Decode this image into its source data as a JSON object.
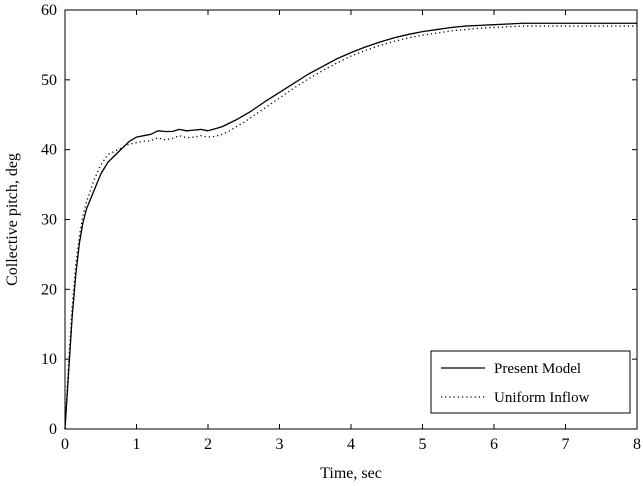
{
  "chart_data": {
    "type": "line",
    "title": "",
    "xlabel": "Time, sec",
    "ylabel": "Collective pitch, deg",
    "xlim": [
      0,
      8
    ],
    "ylim": [
      0,
      60
    ],
    "xticks": [
      0,
      1,
      2,
      3,
      4,
      5,
      6,
      7,
      8
    ],
    "yticks": [
      0,
      10,
      20,
      30,
      40,
      50,
      60
    ],
    "grid": false,
    "legend_position": "bottom-right",
    "series": [
      {
        "name": "Present Model",
        "style": "solid",
        "color": "#000000",
        "x": [
          0,
          0.05,
          0.1,
          0.15,
          0.2,
          0.25,
          0.3,
          0.4,
          0.5,
          0.6,
          0.7,
          0.8,
          0.9,
          1.0,
          1.1,
          1.2,
          1.3,
          1.4,
          1.5,
          1.6,
          1.7,
          1.8,
          1.9,
          2.0,
          2.1,
          2.2,
          2.3,
          2.4,
          2.5,
          2.6,
          2.7,
          2.8,
          3.0,
          3.2,
          3.4,
          3.6,
          3.8,
          4.0,
          4.2,
          4.4,
          4.6,
          4.8,
          5.0,
          5.2,
          5.4,
          5.6,
          5.8,
          6.0,
          6.2,
          6.4,
          6.6,
          6.8,
          7.0,
          7.2,
          7.5,
          7.8,
          8.0
        ],
        "y": [
          0,
          8,
          16,
          22,
          26.5,
          29.5,
          31.5,
          34,
          36.5,
          38.2,
          39.2,
          40.2,
          41.2,
          41.8,
          42.0,
          42.2,
          42.7,
          42.6,
          42.6,
          42.9,
          42.7,
          42.8,
          42.9,
          42.7,
          43.0,
          43.3,
          43.8,
          44.3,
          44.9,
          45.5,
          46.2,
          46.9,
          48.2,
          49.5,
          50.8,
          51.9,
          53.0,
          53.9,
          54.7,
          55.4,
          56.0,
          56.5,
          56.9,
          57.2,
          57.5,
          57.7,
          57.8,
          57.9,
          58.0,
          58.1,
          58.1,
          58.1,
          58.1,
          58.1,
          58.1,
          58.1,
          58.1
        ]
      },
      {
        "name": "Uniform Inflow",
        "style": "dotted",
        "color": "#000000",
        "x": [
          0,
          0.05,
          0.1,
          0.15,
          0.2,
          0.25,
          0.3,
          0.4,
          0.5,
          0.6,
          0.7,
          0.8,
          0.9,
          1.0,
          1.1,
          1.2,
          1.3,
          1.4,
          1.5,
          1.6,
          1.7,
          1.8,
          1.9,
          2.0,
          2.1,
          2.2,
          2.3,
          2.4,
          2.5,
          2.6,
          2.7,
          2.8,
          3.0,
          3.2,
          3.4,
          3.6,
          3.8,
          4.0,
          4.2,
          4.4,
          4.6,
          4.8,
          5.0,
          5.2,
          5.4,
          5.6,
          5.8,
          6.0,
          6.2,
          6.4,
          6.6,
          6.8,
          7.0,
          7.2,
          7.5,
          7.8,
          8.0
        ],
        "y": [
          0,
          9.5,
          17.5,
          23.5,
          27.5,
          30.5,
          32.5,
          35.5,
          37.8,
          39.3,
          39.8,
          40.3,
          40.8,
          41.0,
          41.2,
          41.3,
          41.7,
          41.4,
          41.6,
          42.0,
          41.7,
          41.8,
          42.0,
          41.8,
          41.9,
          42.2,
          42.7,
          43.3,
          43.9,
          44.6,
          45.3,
          46.0,
          47.4,
          48.8,
          50.1,
          51.3,
          52.4,
          53.4,
          54.2,
          54.9,
          55.5,
          56.0,
          56.4,
          56.7,
          57.0,
          57.2,
          57.4,
          57.5,
          57.6,
          57.7,
          57.7,
          57.7,
          57.7,
          57.7,
          57.7,
          57.7,
          57.7
        ]
      }
    ]
  }
}
